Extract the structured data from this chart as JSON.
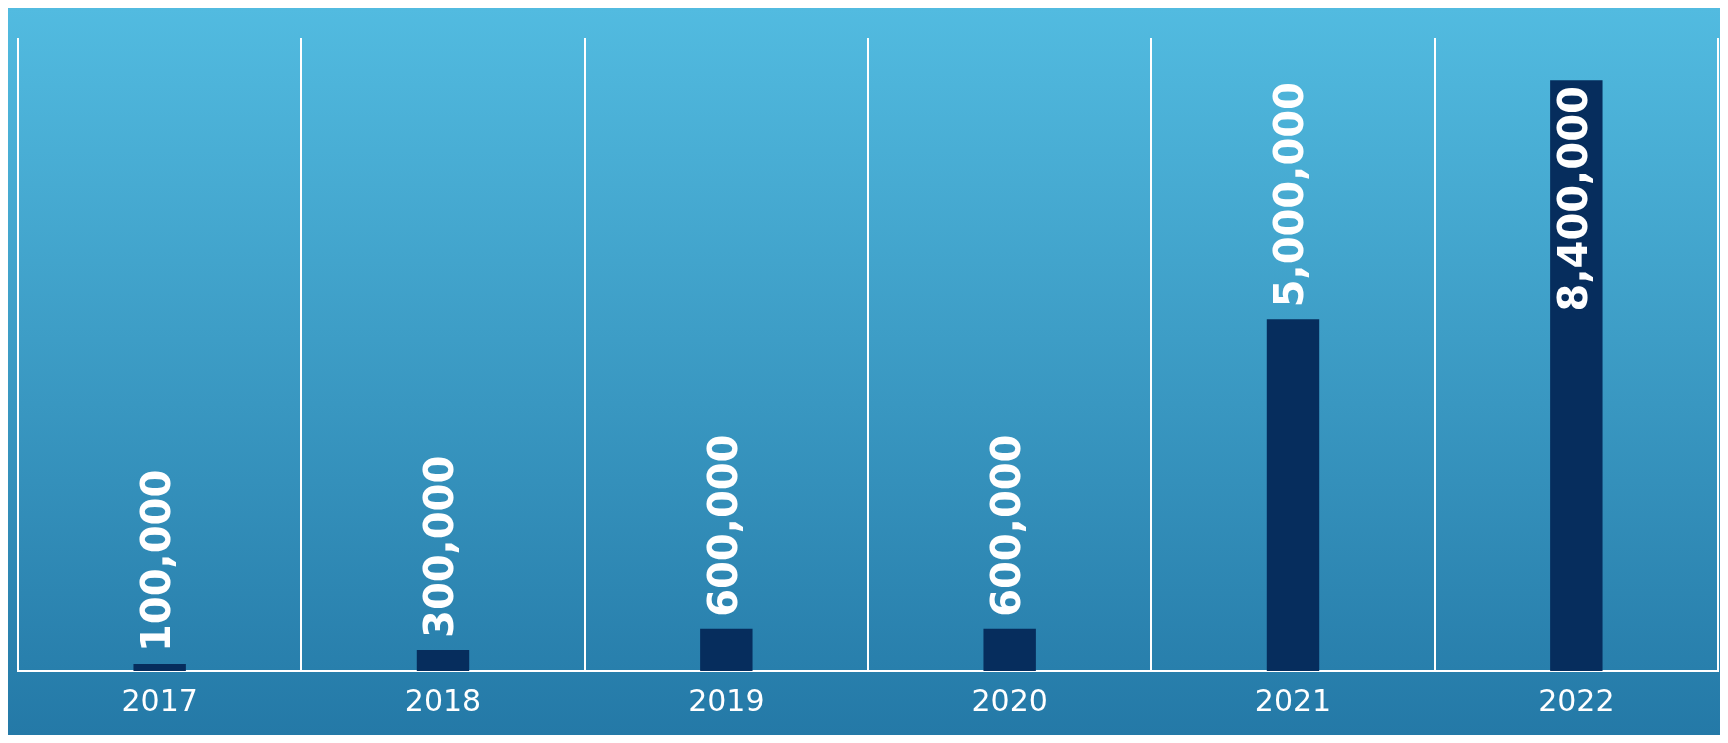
{
  "chart_data": {
    "type": "bar",
    "categories": [
      "2017",
      "2018",
      "2019",
      "2020",
      "2021",
      "2022"
    ],
    "values": [
      100000,
      300000,
      600000,
      600000,
      5000000,
      8400000
    ],
    "color": "#062d5d",
    "value_labels": [
      "100,000",
      "300,000",
      "600,000",
      "600,000",
      "5,000,000",
      "8,400,000"
    ],
    "grid": "x"
  }
}
